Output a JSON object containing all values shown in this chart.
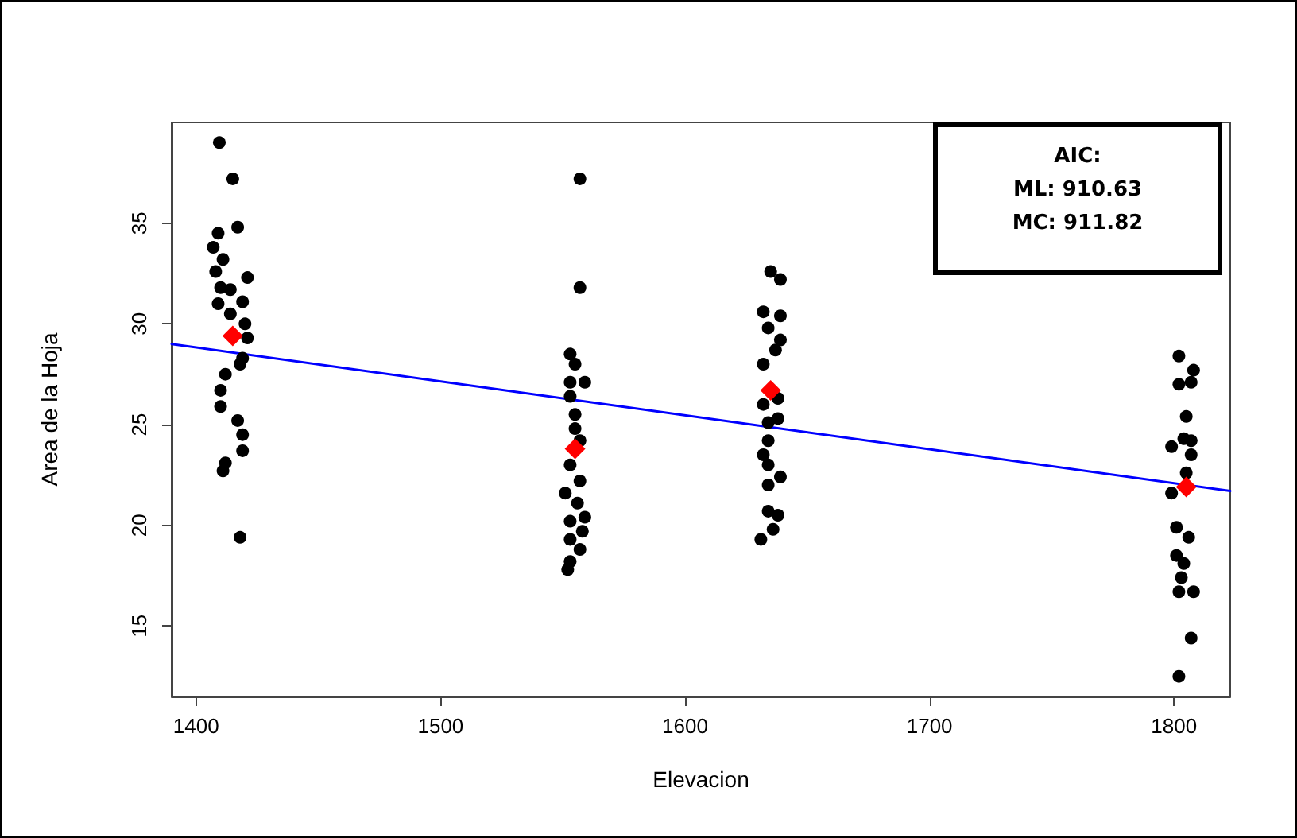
{
  "chart_data": {
    "type": "scatter",
    "xlabel": "Elevacion",
    "ylabel": "Area de la Hoja",
    "xlim": [
      1390,
      1823
    ],
    "ylim": [
      11.5,
      40
    ],
    "xticks": [
      1400,
      1500,
      1600,
      1700,
      1800
    ],
    "yticks": [
      15,
      20,
      25,
      30,
      35
    ],
    "grid": false,
    "annotations": [
      "AIC:",
      "ML: 910.63",
      "MC: 911.82"
    ],
    "series": [
      {
        "color": "#000000",
        "marker": "circle",
        "x": [
          1409.5,
          1415,
          1417,
          1409,
          1407,
          1411,
          1408,
          1421,
          1410,
          1414,
          1409,
          1419,
          1414,
          1420,
          1421,
          1419,
          1418,
          1412,
          1410,
          1410,
          1417,
          1419,
          1419,
          1412,
          1411,
          1418,
          1557,
          1557,
          1553,
          1555,
          1553,
          1559,
          1553,
          1555,
          1555,
          1557,
          1553,
          1557,
          1551,
          1556,
          1559,
          1553,
          1558,
          1553,
          1557,
          1553,
          1552,
          1635,
          1639,
          1632,
          1639,
          1634,
          1639,
          1637,
          1632,
          1638,
          1632,
          1638,
          1634,
          1634,
          1632,
          1634,
          1639,
          1634,
          1634,
          1638,
          1636,
          1631,
          1802,
          1808,
          1802,
          1807,
          1805,
          1804,
          1807,
          1799,
          1807,
          1805,
          1799,
          1801,
          1806,
          1801,
          1804,
          1803,
          1808,
          1802,
          1807,
          1802
        ],
        "values": [
          39.0,
          37.2,
          34.8,
          34.5,
          33.8,
          33.2,
          32.6,
          32.3,
          31.8,
          31.7,
          31.0,
          31.1,
          30.5,
          30.0,
          29.3,
          28.3,
          28.0,
          27.5,
          26.7,
          25.9,
          25.2,
          24.5,
          23.7,
          23.1,
          22.7,
          19.4,
          37.2,
          31.8,
          28.5,
          28.0,
          27.1,
          27.1,
          26.4,
          25.5,
          24.8,
          24.2,
          23.0,
          22.2,
          21.6,
          21.1,
          20.4,
          20.2,
          19.7,
          19.3,
          18.8,
          18.2,
          17.8,
          32.6,
          32.2,
          30.6,
          30.4,
          29.8,
          29.2,
          28.7,
          28.0,
          26.3,
          26.0,
          25.3,
          25.1,
          24.2,
          23.5,
          23.0,
          22.4,
          22.0,
          20.7,
          20.5,
          19.8,
          19.3,
          28.4,
          27.7,
          27.0,
          27.1,
          25.4,
          24.3,
          24.2,
          23.9,
          23.5,
          22.6,
          21.6,
          19.9,
          19.4,
          18.5,
          18.1,
          17.4,
          16.7,
          16.7,
          14.4,
          12.5
        ]
      },
      {
        "color": "#ff0000",
        "marker": "diamond",
        "x": [
          1415,
          1555,
          1635,
          1805
        ],
        "values": [
          29.4,
          23.8,
          26.7,
          21.9
        ]
      },
      {
        "type": "line",
        "color": "#0000ff",
        "marker": "none",
        "line_style": "solid",
        "x": [
          1390,
          1823
        ],
        "values": [
          29.0,
          21.7
        ]
      }
    ]
  }
}
